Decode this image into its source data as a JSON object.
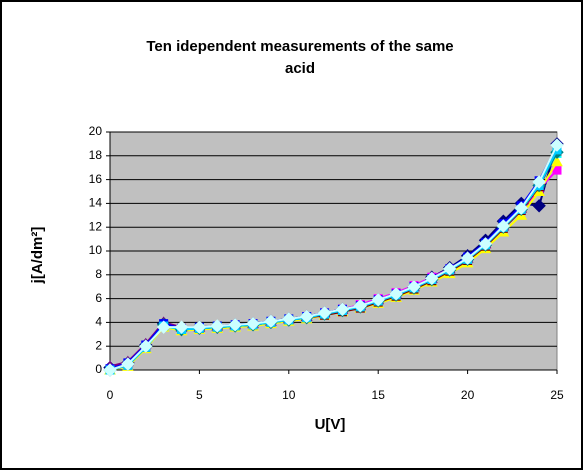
{
  "chart_data": {
    "type": "line",
    "title_lines": [
      "Ten idependent measurements of the same",
      "acid"
    ],
    "xlabel": "U[V]",
    "ylabel": "j[A/dm²]",
    "x": [
      0,
      1,
      2,
      3,
      4,
      5,
      6,
      7,
      8,
      9,
      10,
      11,
      12,
      13,
      14,
      15,
      16,
      17,
      18,
      19,
      20,
      21,
      22,
      23,
      24,
      25
    ],
    "xlim": [
      0,
      25
    ],
    "xticks": [
      0,
      5,
      10,
      15,
      20,
      25
    ],
    "ylim": [
      0,
      20
    ],
    "yticks": [
      0,
      2,
      4,
      6,
      8,
      10,
      12,
      14,
      16,
      18,
      20
    ],
    "grid": true,
    "series": [
      {
        "color": "#000080",
        "marker": "diamond",
        "values": [
          0.2,
          0.6,
          2.1,
          3.9,
          3.4,
          3.6,
          3.6,
          3.8,
          3.9,
          4.1,
          4.3,
          4.5,
          4.8,
          5.1,
          5.4,
          5.9,
          6.4,
          7,
          7.8,
          8.6,
          9.6,
          10.9,
          12.5,
          14,
          13.8,
          19
        ]
      },
      {
        "color": "#FF00FF",
        "marker": "square",
        "values": [
          0.1,
          0.5,
          2,
          3.7,
          3.5,
          3.5,
          3.6,
          3.7,
          3.8,
          4,
          4.2,
          4.5,
          4.8,
          5.1,
          5.5,
          6,
          6.5,
          7.1,
          7.8,
          8.5,
          9.4,
          10.6,
          12,
          13.4,
          15.2,
          16.8
        ]
      },
      {
        "color": "#FFFF00",
        "marker": "triangle",
        "values": [
          0,
          0.3,
          1.8,
          3.6,
          3.3,
          3.4,
          3.5,
          3.6,
          3.7,
          3.9,
          4.1,
          4.3,
          4.6,
          4.9,
          5.2,
          5.6,
          6.1,
          6.7,
          7.4,
          8.1,
          9,
          10.2,
          11.6,
          13,
          15,
          17.5
        ]
      },
      {
        "color": "#00FFFF",
        "marker": "square",
        "values": [
          0,
          0.4,
          1.9,
          3.7,
          3.4,
          3.5,
          3.6,
          3.7,
          3.8,
          4,
          4.2,
          4.4,
          4.7,
          5,
          5.3,
          5.8,
          6.3,
          6.9,
          7.6,
          8.4,
          9.3,
          10.5,
          12.2,
          13.6,
          15.6,
          18.2
        ]
      },
      {
        "color": "#800080",
        "marker": "triangle",
        "values": [
          0.3,
          0.7,
          2.2,
          4,
          3.6,
          3.6,
          3.7,
          3.8,
          3.9,
          4.1,
          4.3,
          4.5,
          4.8,
          5.1,
          5.4,
          5.9,
          6.4,
          7,
          7.7,
          8.5,
          9.4,
          10.6,
          12.1,
          13.6,
          15.7,
          18.6
        ]
      },
      {
        "color": "#800000",
        "marker": "square",
        "values": [
          0,
          0.4,
          1.9,
          3.8,
          3.5,
          3.5,
          3.6,
          3.7,
          3.8,
          4,
          4.2,
          4.4,
          4.6,
          4.9,
          5.2,
          5.7,
          6.2,
          6.8,
          7.5,
          8.3,
          9.2,
          10.4,
          11.9,
          13.4,
          15.4,
          18.4
        ]
      },
      {
        "color": "#008080",
        "marker": "diamond",
        "values": [
          0,
          0.5,
          2,
          3.8,
          3.4,
          3.5,
          3.6,
          3.7,
          3.8,
          4,
          4.2,
          4.4,
          4.7,
          5,
          5.3,
          5.8,
          6.3,
          6.9,
          7.6,
          8.4,
          9.3,
          10.5,
          12,
          13.5,
          15.5,
          18.3
        ]
      },
      {
        "color": "#0000FF",
        "marker": "square",
        "values": [
          0.1,
          0.6,
          2.1,
          3.9,
          3.5,
          3.6,
          3.7,
          3.8,
          3.9,
          4.1,
          4.3,
          4.5,
          4.8,
          5.1,
          5.4,
          5.9,
          6.4,
          7,
          7.7,
          8.5,
          9.5,
          10.7,
          12.3,
          13.8,
          15.9,
          18.8
        ]
      },
      {
        "color": "#00CCFF",
        "marker": "square",
        "values": [
          0,
          0.4,
          1.9,
          3.7,
          3.4,
          3.5,
          3.6,
          3.7,
          3.8,
          4,
          4.2,
          4.4,
          4.7,
          5,
          5.3,
          5.8,
          6.3,
          6.9,
          7.6,
          8.4,
          9.3,
          10.5,
          12,
          13.5,
          15.5,
          18.5
        ]
      },
      {
        "color": "#CCFFFF",
        "marker": "diamond",
        "values": [
          0,
          0.5,
          2,
          3.6,
          3.6,
          3.6,
          3.7,
          3.8,
          3.9,
          4.1,
          4.3,
          4.5,
          4.8,
          5.1,
          5.4,
          5.9,
          6.4,
          7,
          7.7,
          8.5,
          9.4,
          10.6,
          12.1,
          13.6,
          15.8,
          18.9
        ]
      }
    ]
  }
}
